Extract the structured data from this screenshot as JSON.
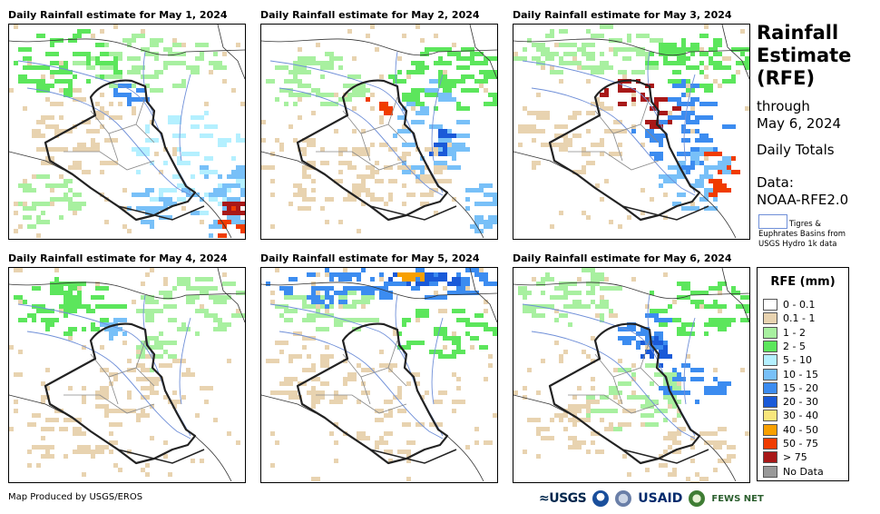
{
  "title_lines": [
    "Rainfall",
    "Estimate",
    "(RFE)"
  ],
  "through_label": "through",
  "through_date": "May 6, 2024",
  "daily_totals": "Daily Totals",
  "data_label": "Data:",
  "data_source": "NOAA-RFE2.0",
  "basin_legend": {
    "line1": "Tigres &",
    "line2": "Euphrates Basins from",
    "line3": "USGS Hydro 1k data",
    "color": "#6f8fd8"
  },
  "panels": [
    {
      "title": "Daily Rainfall estimate for May 1, 2024",
      "date": "May 1, 2024"
    },
    {
      "title": "Daily Rainfall estimate for May 2, 2024",
      "date": "May 2, 2024"
    },
    {
      "title": "Daily Rainfall estimate for May 3, 2024",
      "date": "May 3, 2024"
    },
    {
      "title": "Daily Rainfall estimate for May 4, 2024",
      "date": "May 4, 2024"
    },
    {
      "title": "Daily Rainfall estimate for May 5, 2024",
      "date": "May 5, 2024"
    },
    {
      "title": "Daily Rainfall estimate for May 6, 2024",
      "date": "May 6, 2024"
    }
  ],
  "legend": {
    "title": "RFE (mm)",
    "classes": [
      {
        "label": "0 - 0.1",
        "color": "#ffffff"
      },
      {
        "label": "0.1 - 1",
        "color": "#e8d3b0"
      },
      {
        "label": "1 - 2",
        "color": "#a8f0a0"
      },
      {
        "label": "2 - 5",
        "color": "#5ce65c"
      },
      {
        "label": "5 - 10",
        "color": "#b4f0ff"
      },
      {
        "label": "10 - 15",
        "color": "#78c0f8"
      },
      {
        "label": "15 - 20",
        "color": "#3c8cf0"
      },
      {
        "label": "20 - 30",
        "color": "#1a5ad8"
      },
      {
        "label": "30 - 40",
        "color": "#f8e67c"
      },
      {
        "label": "40 - 50",
        "color": "#f8a000"
      },
      {
        "label": "50 - 75",
        "color": "#f03c00"
      },
      {
        "label": "> 75",
        "color": "#a81818"
      },
      {
        "label": "No Data",
        "color": "#999999"
      }
    ]
  },
  "footer": "Map Produced by USGS/EROS",
  "logos": {
    "usgs": "≈USGS",
    "usaid": "USAID",
    "fews": "FEWS NET"
  }
}
